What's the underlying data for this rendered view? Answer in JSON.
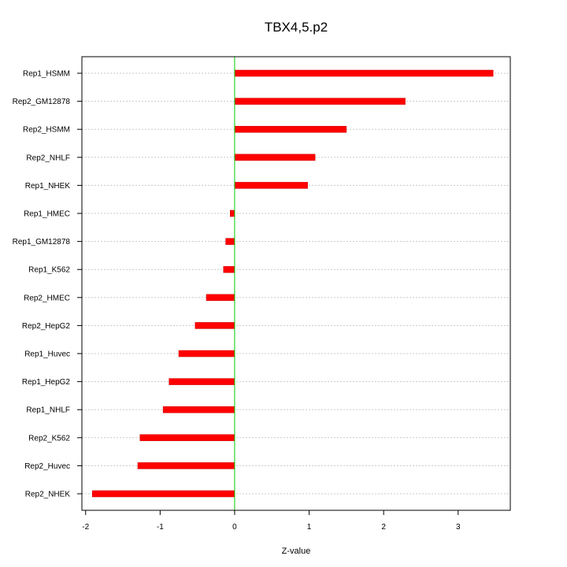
{
  "chart_data": {
    "type": "bar",
    "orientation": "horizontal",
    "title": "TBX4,5.p2",
    "xlabel": "Z-value",
    "ylabel": "",
    "xlim": [
      -2.05,
      3.7
    ],
    "x_ticks": [
      -2,
      -1,
      0,
      1,
      2,
      3
    ],
    "grid": "horizontal dotted",
    "zero_line_color": "#00cc00",
    "bar_color": "#ff0000",
    "categories": [
      "Rep1_HSMM",
      "Rep2_GM12878",
      "Rep2_HSMM",
      "Rep2_NHLF",
      "Rep1_NHEK",
      "Rep1_HMEC",
      "Rep1_GM12878",
      "Rep1_K562",
      "Rep2_HMEC",
      "Rep2_HepG2",
      "Rep1_Huvec",
      "Rep1_HepG2",
      "Rep1_NHLF",
      "Rep2_K562",
      "Rep2_Huvec",
      "Rep2_NHEK"
    ],
    "values": [
      3.47,
      2.29,
      1.5,
      1.08,
      0.98,
      -0.06,
      -0.12,
      -0.15,
      -0.38,
      -0.53,
      -0.75,
      -0.88,
      -0.96,
      -1.27,
      -1.3,
      -1.91
    ]
  }
}
